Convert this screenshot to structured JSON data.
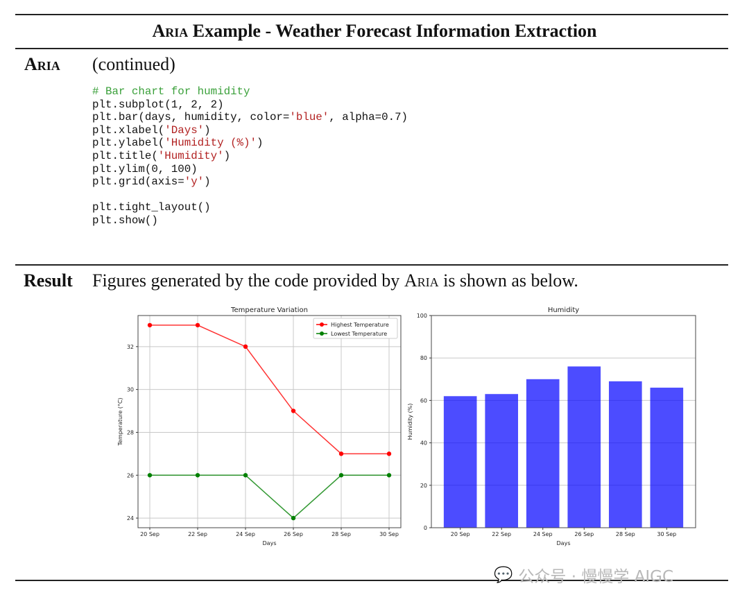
{
  "header": {
    "title_smallcaps": "Aria",
    "title_rest": " Example - Weather Forecast Information Extraction"
  },
  "aria_section": {
    "label": "Aria",
    "text": "(continued)"
  },
  "code_lines": [
    [
      {
        "t": "# Bar chart for humidity",
        "c": "comment"
      }
    ],
    [
      {
        "t": "plt.subplot(1, 2, 2)",
        "c": "plain"
      }
    ],
    [
      {
        "t": "plt.bar(days, humidity, color=",
        "c": "plain"
      },
      {
        "t": "'blue'",
        "c": "string"
      },
      {
        "t": ", alpha=0.7)",
        "c": "plain"
      }
    ],
    [
      {
        "t": "plt.xlabel(",
        "c": "plain"
      },
      {
        "t": "'Days'",
        "c": "string"
      },
      {
        "t": ")",
        "c": "plain"
      }
    ],
    [
      {
        "t": "plt.ylabel(",
        "c": "plain"
      },
      {
        "t": "'Humidity (%)'",
        "c": "string"
      },
      {
        "t": ")",
        "c": "plain"
      }
    ],
    [
      {
        "t": "plt.title(",
        "c": "plain"
      },
      {
        "t": "'Humidity'",
        "c": "string"
      },
      {
        "t": ")",
        "c": "plain"
      }
    ],
    [
      {
        "t": "plt.ylim(0, 100)",
        "c": "plain"
      }
    ],
    [
      {
        "t": "plt.grid(axis=",
        "c": "plain"
      },
      {
        "t": "'y'",
        "c": "string"
      },
      {
        "t": ")",
        "c": "plain"
      }
    ],
    [
      {
        "t": "",
        "c": "plain"
      }
    ],
    [
      {
        "t": "plt.tight_layout()",
        "c": "plain"
      }
    ],
    [
      {
        "t": "plt.show()",
        "c": "plain"
      }
    ]
  ],
  "result_section": {
    "label": "Result",
    "text_before": "Figures generated by the code provided by ",
    "text_smallcaps": "Aria",
    "text_after": " is shown as below."
  },
  "watermark": {
    "text": "公众号 · 慢慢学 AIGC"
  },
  "chart_data": [
    {
      "type": "line",
      "title": "Temperature Variation",
      "xlabel": "Days",
      "ylabel": "Temperature (°C)",
      "categories": [
        "20 Sep",
        "22 Sep",
        "24 Sep",
        "26 Sep",
        "28 Sep",
        "30 Sep"
      ],
      "series": [
        {
          "name": "Highest Temperature",
          "values": [
            33,
            33,
            32,
            29,
            27,
            27
          ],
          "color": "#ff0000"
        },
        {
          "name": "Lowest Temperature",
          "values": [
            26,
            26,
            26,
            24,
            26,
            26
          ],
          "color": "#008000"
        }
      ],
      "yticks": [
        24,
        26,
        28,
        30,
        32
      ],
      "ylim": [
        23.55,
        33.45
      ],
      "grid": "both",
      "legend": "top-right"
    },
    {
      "type": "bar",
      "title": "Humidity",
      "xlabel": "Days",
      "ylabel": "Humidity (%)",
      "categories": [
        "20 Sep",
        "22 Sep",
        "24 Sep",
        "26 Sep",
        "28 Sep",
        "30 Sep"
      ],
      "values": [
        62,
        63,
        70,
        76,
        69,
        66
      ],
      "color": "#0000ff",
      "alpha": 0.7,
      "yticks": [
        0,
        20,
        40,
        60,
        80,
        100
      ],
      "ylim": [
        0,
        100
      ],
      "grid": "y"
    }
  ]
}
